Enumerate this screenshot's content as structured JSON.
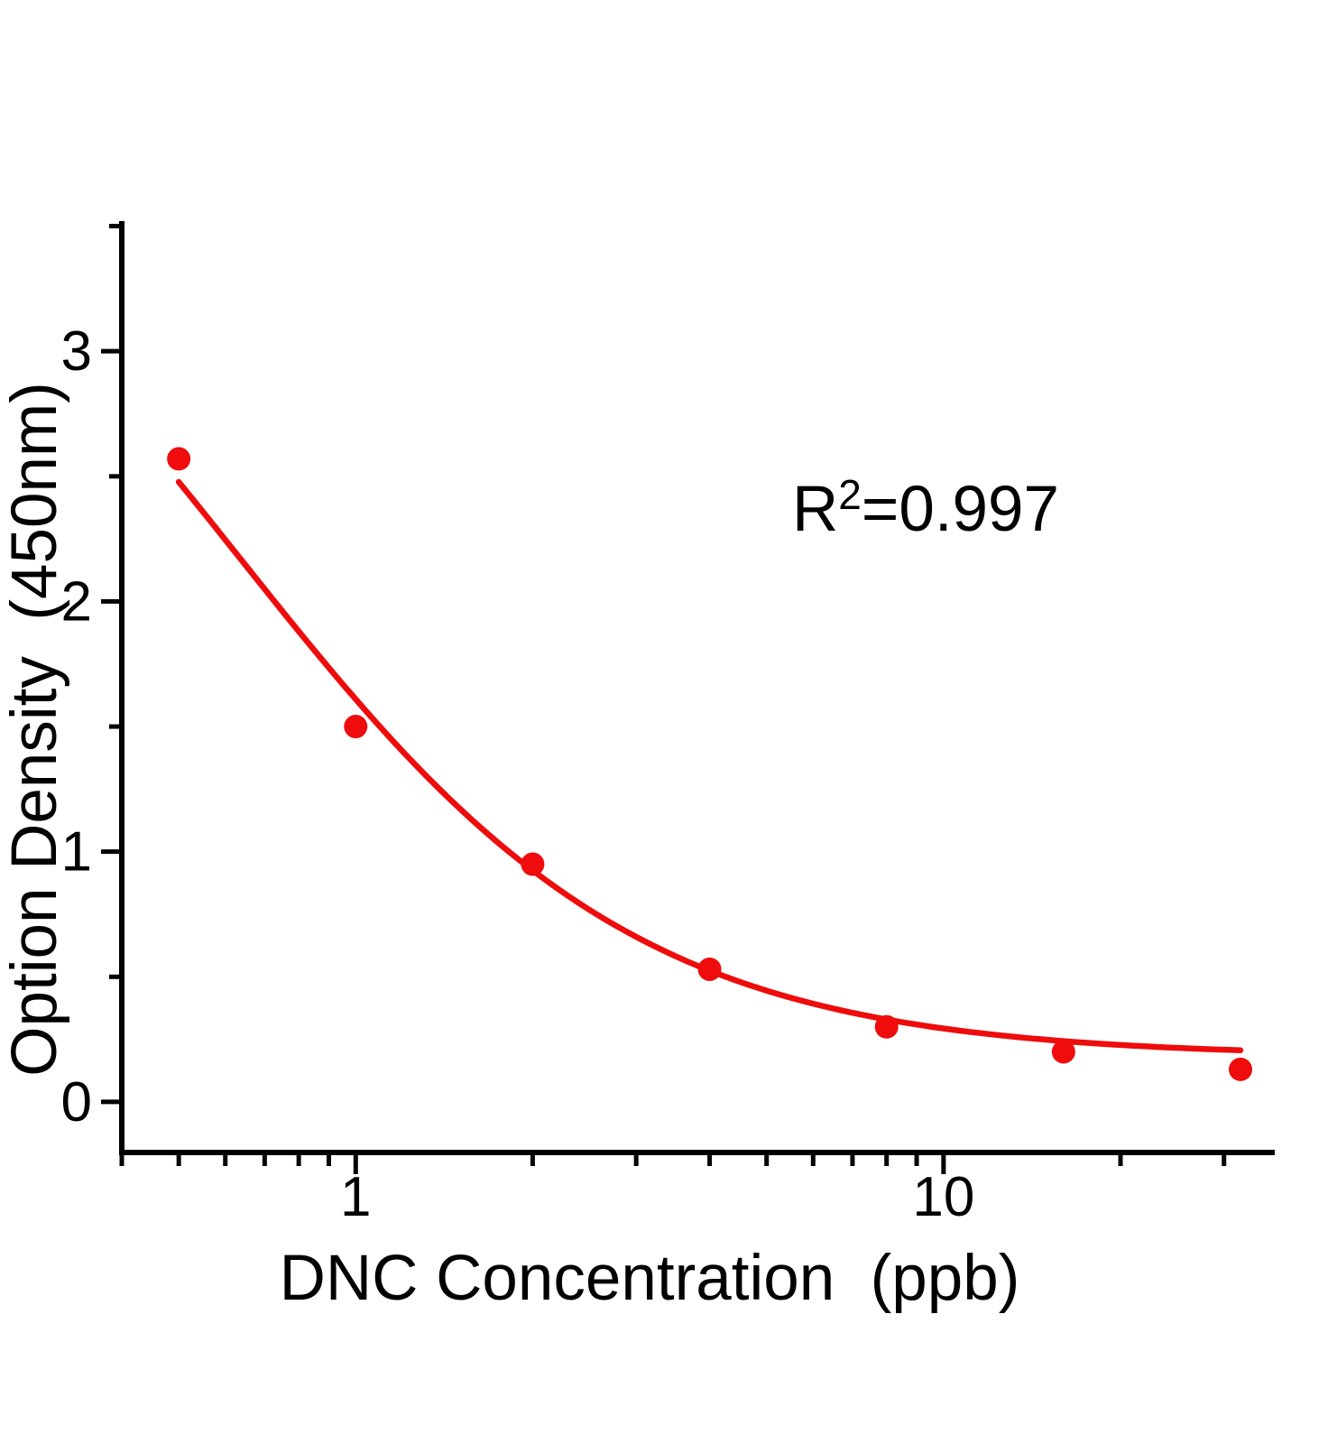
{
  "chart_data": {
    "type": "scatter",
    "subtype": "calibration-curve-with-4PL-fit",
    "title": "",
    "xlabel": "DNC Concentration  (ppb)",
    "ylabel": "Option Density  (450nm)",
    "x_scale": "log10",
    "x_range": [
      0.4,
      36.6
    ],
    "y_range": [
      -0.195,
      3.52
    ],
    "x_ticks_major": [
      1,
      10
    ],
    "x_tick_labels": [
      "1",
      "10"
    ],
    "x_ticks_minor": [
      0.4,
      0.5,
      0.6,
      0.7,
      0.8,
      0.9,
      2,
      3,
      4,
      5,
      6,
      7,
      8,
      9,
      20,
      30
    ],
    "y_ticks_major": [
      0,
      1,
      2,
      3
    ],
    "y_tick_labels": [
      "0",
      "1",
      "2",
      "3"
    ],
    "y_ticks_minor": [
      0.5,
      1.5,
      2.5,
      3.5
    ],
    "grid": false,
    "legend": "none",
    "points": [
      {
        "x": 0.5,
        "y": 2.57
      },
      {
        "x": 1,
        "y": 1.5
      },
      {
        "x": 2,
        "y": 0.95
      },
      {
        "x": 4,
        "y": 0.53
      },
      {
        "x": 8,
        "y": 0.3
      },
      {
        "x": 16,
        "y": 0.2
      },
      {
        "x": 32,
        "y": 0.13
      }
    ],
    "fit_curve": {
      "model": "4PL",
      "top": 4.18,
      "bottom": 0.18,
      "ec50": 0.632,
      "hill": 1.28,
      "x_start": 0.5,
      "x_end": 32
    },
    "annotation": {
      "base": "R",
      "sup": "2",
      "rest": "=0.997"
    },
    "r_squared": 0.997,
    "colors": {
      "series": "#ee0c0c",
      "axis": "#000000",
      "text": "#000000",
      "background": "#ffffff"
    },
    "marker_radius": 13
  }
}
